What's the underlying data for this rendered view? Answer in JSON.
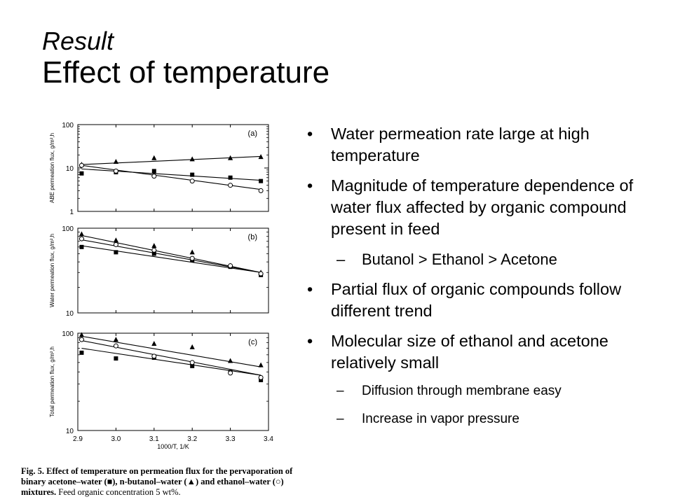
{
  "title": {
    "line1": "Result",
    "line2": "Effect of temperature"
  },
  "bullets": [
    {
      "level": 1,
      "text": "Water permeation rate large at high temperature"
    },
    {
      "level": 1,
      "text": "Magnitude of temperature dependence of water flux affected by organic compound present in feed"
    },
    {
      "level": 2,
      "text": "Butanol > Ethanol > Acetone"
    },
    {
      "level": 1,
      "text": "Partial flux of organic compounds follow different trend"
    },
    {
      "level": 1,
      "text": "Molecular size of ethanol and acetone relatively small"
    },
    {
      "level": 3,
      "text": "Diffusion through membrane easy"
    },
    {
      "level": 3,
      "text": "Increase in vapor pressure"
    }
  ],
  "caption": {
    "bold": "Fig. 5. Effect of temperature on permeation flux for the pervaporation of binary acetone–water (■), n-butanol–water (▲) and ethanol–water (○) mixtures.",
    "rest": " Feed organic concentration 5 wt%."
  },
  "chart_data": [
    {
      "type": "scatter",
      "panel_label": "(a)",
      "ylabel": "ABE permeation flux, g/m²,h",
      "xlabel": "",
      "x_ticks": [
        2.9,
        3.0,
        3.1,
        3.2,
        3.3,
        3.4
      ],
      "y_scale": "log",
      "ylim": [
        1,
        100
      ],
      "y_ticks": [
        1,
        10,
        100
      ],
      "series": [
        {
          "marker": "square",
          "x": [
            2.91,
            3.0,
            3.1,
            3.2,
            3.3,
            3.38
          ],
          "y": [
            7.5,
            8.0,
            8.5,
            7.0,
            6.0,
            5.0
          ],
          "fit": [
            [
              2.91,
              9.5
            ],
            [
              3.38,
              5.2
            ]
          ]
        },
        {
          "marker": "triangle",
          "x": [
            2.91,
            3.0,
            3.1,
            3.2,
            3.3,
            3.38
          ],
          "y": [
            12,
            14,
            17,
            16,
            17,
            18
          ],
          "fit": [
            [
              2.91,
              12
            ],
            [
              3.38,
              18.5
            ]
          ]
        },
        {
          "marker": "circle",
          "x": [
            2.91,
            3.0,
            3.1,
            3.2,
            3.3,
            3.38
          ],
          "y": [
            11.5,
            8.5,
            6.5,
            5.0,
            4.0,
            3.0
          ],
          "fit": [
            [
              2.91,
              11.5
            ],
            [
              3.38,
              3.2
            ]
          ]
        }
      ]
    },
    {
      "type": "scatter",
      "panel_label": "(b)",
      "ylabel": "Water permeation flux, g/m²,h",
      "xlabel": "",
      "x_ticks": [
        2.9,
        3.0,
        3.1,
        3.2,
        3.3,
        3.4
      ],
      "y_scale": "log",
      "ylim": [
        10,
        100
      ],
      "y_ticks": [
        10,
        100
      ],
      "series": [
        {
          "marker": "square",
          "x": [
            2.91,
            3.0,
            3.1,
            3.2,
            3.3,
            3.38
          ],
          "y": [
            60,
            52,
            50,
            42,
            35,
            28
          ],
          "fit": [
            [
              2.91,
              62
            ],
            [
              3.38,
              30
            ]
          ]
        },
        {
          "marker": "triangle",
          "x": [
            2.91,
            3.0,
            3.1,
            3.2,
            3.3,
            3.38
          ],
          "y": [
            85,
            72,
            62,
            52,
            36,
            30
          ],
          "fit": [
            [
              2.91,
              82
            ],
            [
              3.38,
              30
            ]
          ]
        },
        {
          "marker": "circle",
          "x": [
            2.91,
            3.0,
            3.1,
            3.2,
            3.3,
            3.38
          ],
          "y": [
            75,
            64,
            55,
            44,
            36,
            29
          ],
          "fit": [
            [
              2.91,
              73
            ],
            [
              3.38,
              30
            ]
          ]
        }
      ]
    },
    {
      "type": "scatter",
      "panel_label": "(c)",
      "ylabel": "Total permeation flux, g/m²,h",
      "xlabel": "1000/T, 1/K",
      "x_ticks": [
        2.9,
        3.0,
        3.1,
        3.2,
        3.3,
        3.4
      ],
      "y_scale": "log",
      "ylim": [
        10,
        100
      ],
      "y_ticks": [
        10,
        100
      ],
      "series": [
        {
          "marker": "square",
          "x": [
            2.91,
            3.0,
            3.1,
            3.2,
            3.3,
            3.38
          ],
          "y": [
            63,
            55,
            56,
            46,
            40,
            33
          ],
          "fit": [
            [
              2.91,
              70
            ],
            [
              3.38,
              37
            ]
          ]
        },
        {
          "marker": "triangle",
          "x": [
            2.91,
            3.0,
            3.1,
            3.2,
            3.3,
            3.38
          ],
          "y": [
            96,
            86,
            78,
            72,
            52,
            47
          ],
          "fit": [
            [
              2.91,
              93
            ],
            [
              3.38,
              45
            ]
          ]
        },
        {
          "marker": "circle",
          "x": [
            2.91,
            3.0,
            3.1,
            3.2,
            3.3,
            3.38
          ],
          "y": [
            86,
            74,
            58,
            50,
            39,
            35
          ],
          "fit": [
            [
              2.91,
              84
            ],
            [
              3.38,
              37
            ]
          ]
        }
      ]
    }
  ]
}
